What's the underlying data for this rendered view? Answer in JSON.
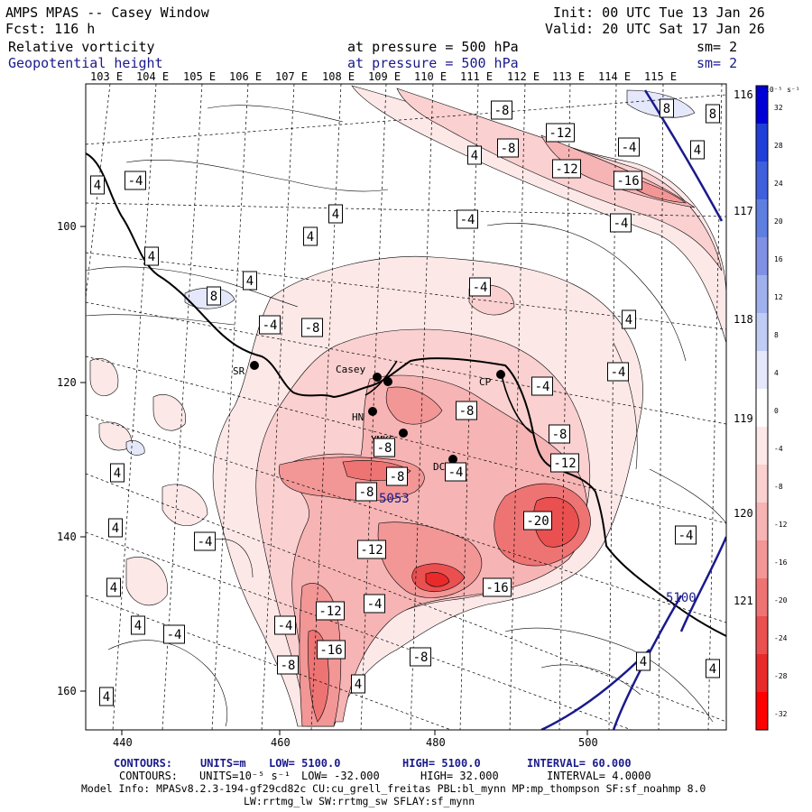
{
  "header": {
    "title": "AMPS MPAS -- Casey Window",
    "fcst": "Fcst:  116 h",
    "init": "Init: 00 UTC Tue 13 Jan 26",
    "valid": "Valid: 20 UTC Sat 17 Jan 26",
    "field1": {
      "name": "Relative vorticity",
      "level": "at pressure =  500 hPa",
      "smooth": "sm= 2"
    },
    "field2": {
      "name": "Geopotential height",
      "level": "at pressure =  500 hPa",
      "smooth": "sm= 2"
    }
  },
  "colorbar": {
    "unit": "10⁻⁵ s⁻¹",
    "ticks": [
      "32",
      "28",
      "24",
      "20",
      "16",
      "12",
      "8",
      "4",
      "0",
      "-4",
      "-8",
      "-12",
      "-16",
      "-20",
      "-24",
      "-28",
      "-32"
    ],
    "colors": [
      "#0000d6",
      "#1f3fd8",
      "#3f5fdc",
      "#5f7fe0",
      "#8090e4",
      "#a0b0ec",
      "#c0ccf4",
      "#e4e8fa",
      "#ffffff",
      "#fde8e8",
      "#fad0d0",
      "#f6b4b4",
      "#f29696",
      "#ee7474",
      "#ea5050",
      "#e82a2a",
      "#ff0000"
    ]
  },
  "chart_data": {
    "type": "contour-map",
    "lon_labels": [
      "103 E",
      "104 E",
      "105 E",
      "106 E",
      "107 E",
      "108 E",
      "109 E",
      "110 E",
      "111 E",
      "112 E",
      "113 E",
      "114 E",
      "115 E",
      "116 E",
      "117 E",
      "118 E",
      "119 E",
      "120 E",
      "121 E"
    ],
    "x_ticks": [
      "440",
      "460",
      "480",
      "500"
    ],
    "y_ticks": [
      "100",
      "120",
      "140",
      "160"
    ],
    "stations": [
      "SR",
      "Casey",
      "CP",
      "HN",
      "YMKS",
      "DC"
    ],
    "vorticity_labels": [
      "4",
      "-4",
      "8",
      "-8",
      "-12",
      "-16",
      "-20"
    ],
    "height_labels": [
      "5053",
      "5100"
    ]
  },
  "footer": {
    "c1_label": "CONTOURS:",
    "c1_units": "UNITS=m",
    "c1_low": "LOW=  5100.0",
    "c1_high": "HIGH=  5100.0",
    "c1_interval": "INTERVAL=   60.000",
    "c2_label": "CONTOURS:",
    "c2_units": "UNITS=10⁻⁵ s⁻¹",
    "c2_low": "LOW= -32.000",
    "c2_high": "HIGH=  32.000",
    "c2_interval": "INTERVAL=   4.0000",
    "model_info": "Model Info: MPASv8.2.3-194-gf29cd82c CU:cu_grell_freitas PBL:bl_mynn MP:mp_thompson SF:sf_noahmp 8.0",
    "model_info2": "LW:rrtmg_lw SW:rrtmg_sw SFLAY:sf_mynn"
  }
}
